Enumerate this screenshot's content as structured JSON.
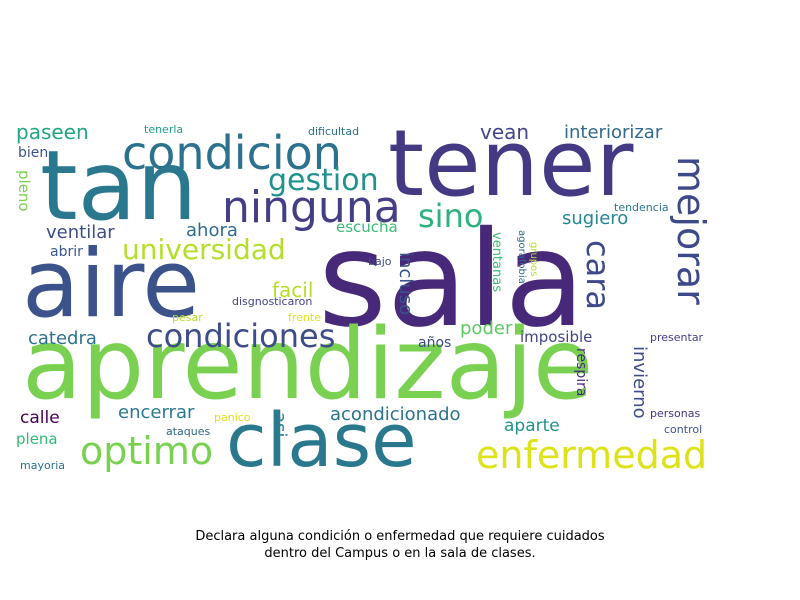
{
  "caption_lines": [
    "Declara alguna condición o enfermedad que requiere cuidados",
    "dentro del Campus o en la sala de clases."
  ],
  "words": [
    {
      "text": "sala",
      "color": "#482878"
    },
    {
      "text": "aprendizaje",
      "color": "#7ad151"
    },
    {
      "text": "tener",
      "color": "#443983"
    },
    {
      "text": "tan",
      "color": "#2a788e"
    },
    {
      "text": "aire",
      "color": "#3b528b"
    },
    {
      "text": "clase",
      "color": "#2a788e"
    },
    {
      "text": "condicion",
      "color": "#2c728e"
    },
    {
      "text": "ninguna",
      "color": "#433e85"
    },
    {
      "text": "condiciones",
      "color": "#3e4c8a"
    },
    {
      "text": "enfermedad",
      "color": "#dde318"
    },
    {
      "text": "optimo",
      "color": "#7ad151"
    },
    {
      "text": "universidad",
      "color": "#b5de2b"
    },
    {
      "text": "gestion",
      "color": "#21918c"
    },
    {
      "text": "sino",
      "color": "#2db27d"
    },
    {
      "text": "mejorar",
      "color": "#3e4989"
    },
    {
      "text": "cara",
      "color": "#3e4989"
    },
    {
      "text": "paseen",
      "color": "#21a585"
    },
    {
      "text": "vean",
      "color": "#404688"
    },
    {
      "text": "interiorizar",
      "color": "#31688e"
    },
    {
      "text": "ventilar",
      "color": "#3d4d8a"
    },
    {
      "text": "ahora",
      "color": "#2f6c8e"
    },
    {
      "text": "sugiero",
      "color": "#24868e"
    },
    {
      "text": "facil",
      "color": "#b5de2b"
    },
    {
      "text": "catedra",
      "color": "#2c728e"
    },
    {
      "text": "poder",
      "color": "#5ec962"
    },
    {
      "text": "escucha",
      "color": "#3bbb75"
    },
    {
      "text": "incluso",
      "color": "#3b528b"
    },
    {
      "text": "invierno",
      "color": "#3e4c8a"
    },
    {
      "text": "encerrar",
      "color": "#2a788e"
    },
    {
      "text": "acondicionado",
      "color": "#2c728e"
    },
    {
      "text": "asi",
      "color": "#287d8e"
    },
    {
      "text": "aparte",
      "color": "#21918c"
    },
    {
      "text": "imposible",
      "color": "#414487"
    },
    {
      "text": "calle",
      "color": "#440154"
    },
    {
      "text": "plena",
      "color": "#35b779"
    },
    {
      "text": "respira",
      "color": "#472d7b"
    },
    {
      "text": "bien",
      "color": "#3b528b"
    },
    {
      "text": "pleno",
      "color": "#7ad151"
    },
    {
      "text": "abrir",
      "color": "#38598c"
    },
    {
      "text": "años",
      "color": "#3e4989"
    },
    {
      "text": "ventanas",
      "color": "#3bbb75"
    },
    {
      "text": "agorafobia",
      "color": "#31688e"
    },
    {
      "text": "grupos",
      "color": "#b5de2b"
    },
    {
      "text": "tendencia",
      "color": "#2a788e"
    },
    {
      "text": "tenerla",
      "color": "#1f9e89"
    },
    {
      "text": "dificultad",
      "color": "#2c728e"
    },
    {
      "text": "bajo",
      "color": "#3e4989"
    },
    {
      "text": "disgnosticaron",
      "color": "#414487"
    },
    {
      "text": "pesar",
      "color": "#b5de2b"
    },
    {
      "text": "frente",
      "color": "#dde318"
    },
    {
      "text": "presentar",
      "color": "#433e85"
    },
    {
      "text": "personas",
      "color": "#46327e"
    },
    {
      "text": "panico",
      "color": "#dde318"
    },
    {
      "text": "ataques",
      "color": "#31688e"
    },
    {
      "text": "control",
      "color": "#3b528b"
    },
    {
      "text": "mayoria",
      "color": "#2c728e"
    }
  ]
}
